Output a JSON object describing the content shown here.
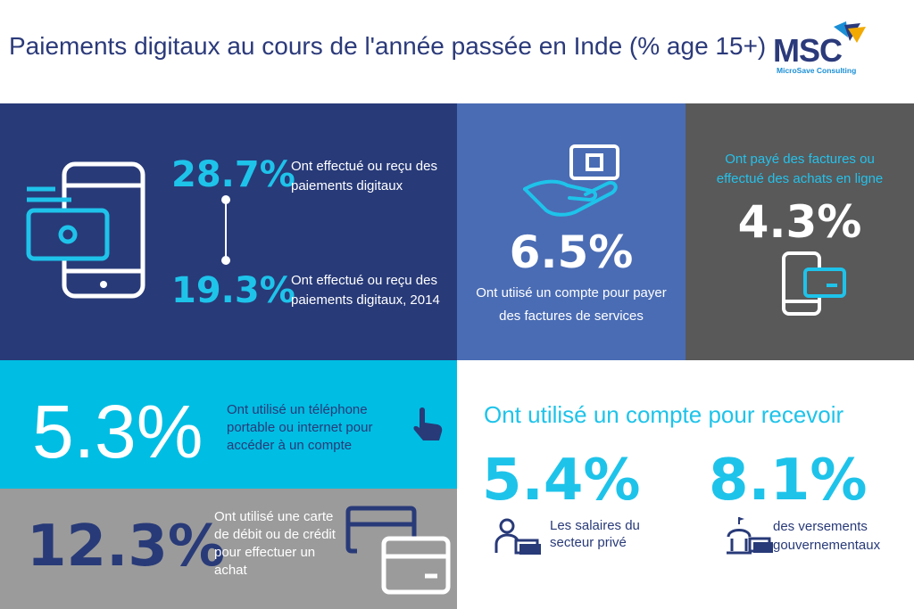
{
  "header": {
    "title": "Paiements digitaux au cours de l'année passée en Inde (% age 15+)",
    "logo_text": "MSC",
    "logo_subtitle": "MicroSave Consulting"
  },
  "colors": {
    "navy": "#283a78",
    "blue": "#4a6cb4",
    "dark_gray": "#595959",
    "cyan": "#00bde3",
    "light_gray": "#9b9b9b",
    "accent_cyan": "#1ec3ea"
  },
  "panel_digital": {
    "icon": "phone-wallet-icon",
    "stat_current": "28.7%",
    "label_current": "Ont effectué ou reçu des paiements digitaux",
    "stat_2014": "19.3%",
    "label_2014": "Ont effectué ou reçu des paiements digitaux, 2014"
  },
  "panel_utilities": {
    "icon": "hand-bill-icon",
    "stat": "6.5%",
    "label": "Ont utiisé un compte pour payer des factures de services"
  },
  "panel_online": {
    "icon": "phone-card-icon",
    "label": "Ont payé des factures ou effectué des achats en ligne",
    "stat": "4.3%"
  },
  "panel_mobile": {
    "icon": "tap-hand-icon",
    "stat": "5.3%",
    "label": "Ont utilisé un téléphone portable ou internet pour accéder à un compte"
  },
  "panel_card": {
    "icon": "cards-icon",
    "stat": "12.3%",
    "label": "Ont utilisé une carte de débit ou de crédit pour effectuer un achat"
  },
  "panel_receive": {
    "heading": "Ont utilisé un compte pour recevoir",
    "wages_stat": "5.4%",
    "wages_label": "Les salaires du secteur privé",
    "wages_icon": "person-money-icon",
    "gov_stat": "8.1%",
    "gov_label": "des versements gouvernementaux",
    "gov_icon": "government-money-icon"
  }
}
